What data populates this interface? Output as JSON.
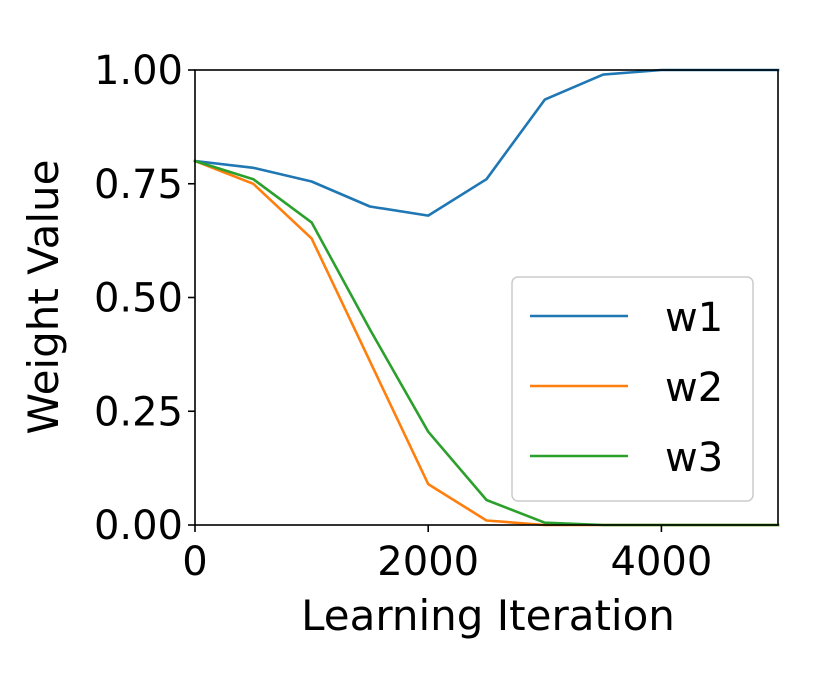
{
  "chart_data": {
    "type": "line",
    "title": "",
    "xlabel": "Learning Iteration",
    "ylabel": "Weight Value",
    "xlim": [
      0,
      5000
    ],
    "ylim": [
      0,
      1.0
    ],
    "xticks": [
      0,
      2000,
      4000
    ],
    "xtick_labels": [
      "0",
      "2000",
      "4000"
    ],
    "yticks": [
      0,
      0.25,
      0.5,
      0.75,
      1.0
    ],
    "ytick_labels": [
      "0.00",
      "0.25",
      "0.50",
      "0.75",
      "1.00"
    ],
    "grid": false,
    "legend_position": "center-right",
    "x": [
      0,
      500,
      1000,
      1500,
      2000,
      2500,
      3000,
      3500,
      4000,
      4500,
      5000
    ],
    "series": [
      {
        "name": "w1",
        "color": "#1f77b4",
        "values": [
          0.8,
          0.785,
          0.755,
          0.7,
          0.68,
          0.76,
          0.935,
          0.99,
          1.0,
          1.0,
          1.0
        ]
      },
      {
        "name": "w2",
        "color": "#ff7f0e",
        "values": [
          0.8,
          0.75,
          0.63,
          0.36,
          0.09,
          0.01,
          0.0,
          0.0,
          0.0,
          0.0,
          0.0
        ]
      },
      {
        "name": "w3",
        "color": "#2ca02c",
        "values": [
          0.8,
          0.76,
          0.665,
          0.43,
          0.205,
          0.055,
          0.005,
          0.0,
          0.0,
          0.0,
          0.0
        ]
      }
    ]
  }
}
